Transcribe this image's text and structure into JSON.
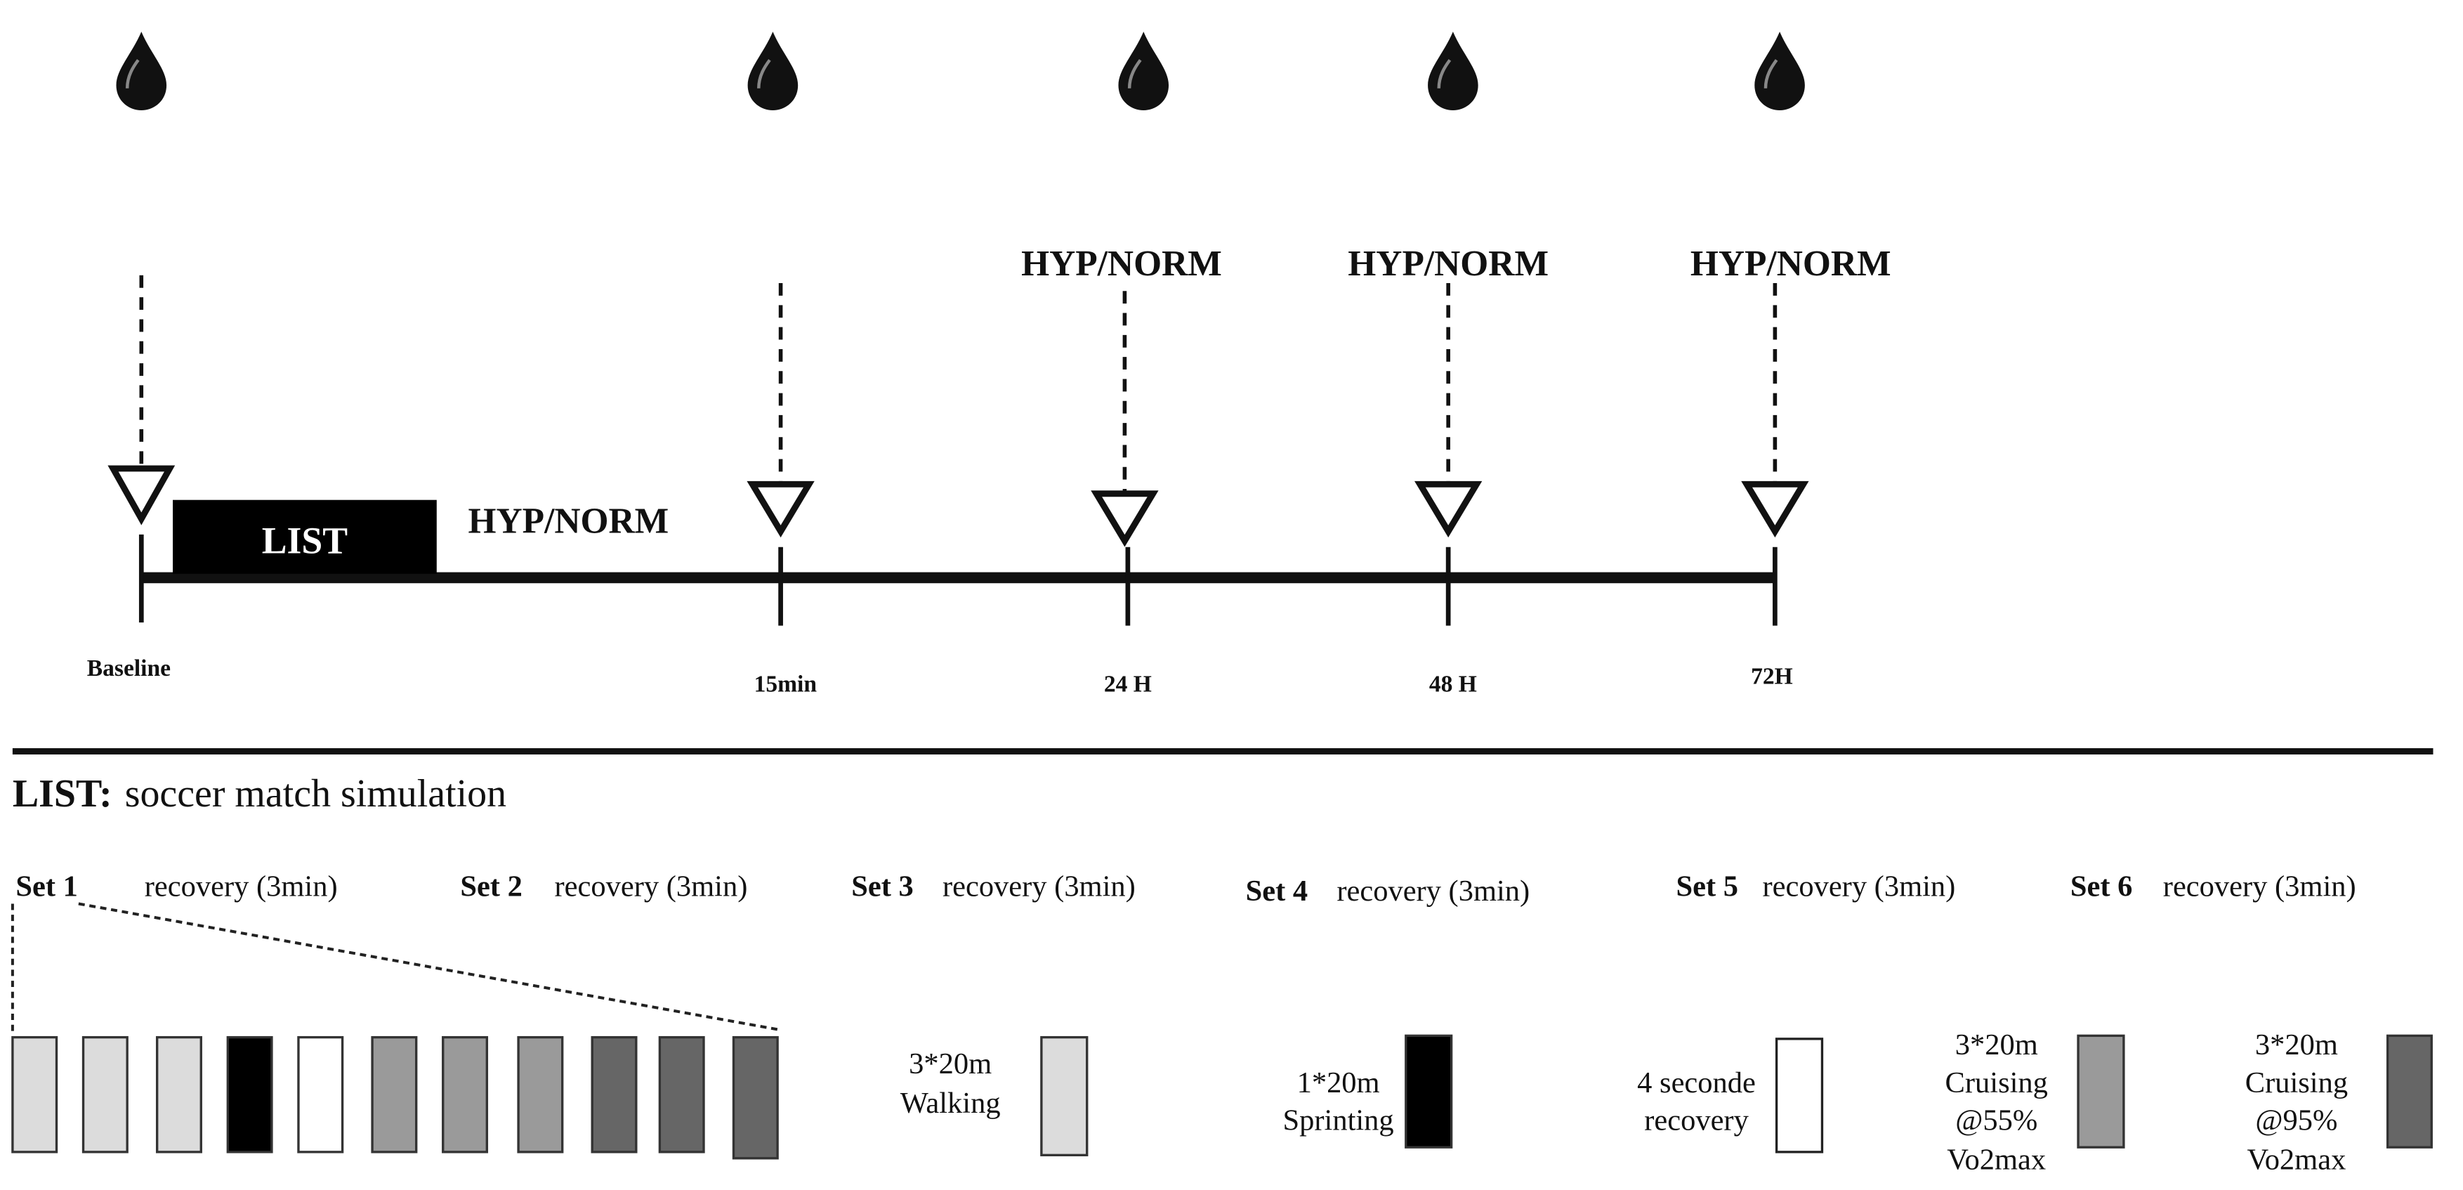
{
  "timeline": {
    "list_box_label": "LIST",
    "first_condition_label": "HYP/NORM",
    "timepoints": [
      {
        "label": "Baseline",
        "condition": ""
      },
      {
        "label": "15min",
        "condition": ""
      },
      {
        "label": "24 H",
        "condition": "HYP/NORM"
      },
      {
        "label": "48 H",
        "condition": "HYP/NORM"
      },
      {
        "label": "72H",
        "condition": "HYP/NORM"
      }
    ]
  },
  "list_section": {
    "title_bold": "LIST:",
    "title_rest": "soccer match simulation",
    "sets": [
      {
        "label": "Set 1",
        "recovery": "recovery (3min)"
      },
      {
        "label": "Set 2",
        "recovery": "recovery (3min)"
      },
      {
        "label": "Set 3",
        "recovery": "recovery (3min)"
      },
      {
        "label": "Set 4",
        "recovery": "recovery (3min)"
      },
      {
        "label": "Set 5",
        "recovery": "recovery (3min)"
      },
      {
        "label": "Set 6",
        "recovery": "recovery (3min)"
      }
    ],
    "set1_blocks": [
      "walking",
      "walking",
      "walking",
      "sprinting",
      "recovery",
      "cruising55",
      "cruising55",
      "cruising55",
      "cruising95",
      "cruising95",
      "cruising95"
    ],
    "legend": [
      {
        "key": "walking",
        "lines": [
          "3*20m",
          "Walking"
        ],
        "color": "#dcdcdc"
      },
      {
        "key": "sprinting",
        "lines": [
          "1*20m",
          "Sprinting"
        ],
        "color": "#000000"
      },
      {
        "key": "recovery",
        "lines": [
          "4 seconde",
          "recovery"
        ],
        "color": "#ffffff"
      },
      {
        "key": "cruising55",
        "lines": [
          "3*20m",
          "Cruising",
          "@55%",
          "Vo2max"
        ],
        "color": "#9a9a9a"
      },
      {
        "key": "cruising95",
        "lines": [
          "3*20m",
          "Cruising",
          "@95%",
          "Vo2max"
        ],
        "color": "#666666"
      }
    ]
  }
}
